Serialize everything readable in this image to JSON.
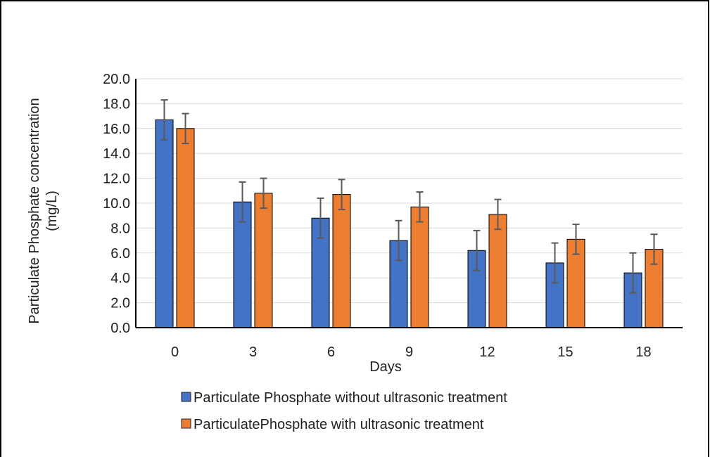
{
  "chart_data": {
    "type": "bar",
    "title": "",
    "xlabel": "Days",
    "ylabel_line1": "Particulate Phosphate concentration",
    "ylabel_line2": "(mg/L)",
    "categories": [
      "0",
      "3",
      "6",
      "9",
      "12",
      "15",
      "18"
    ],
    "ylim": [
      0,
      20
    ],
    "yticks": [
      "0.0",
      "2.0",
      "4.0",
      "6.0",
      "8.0",
      "10.0",
      "12.0",
      "14.0",
      "16.0",
      "18.0",
      "20.0"
    ],
    "grid": true,
    "legend_position": "bottom",
    "series": [
      {
        "name": "Particulate Phosphate without ultrasonic treatment",
        "color": "#4472C4",
        "values": [
          16.7,
          10.1,
          8.8,
          7.0,
          6.2,
          5.2,
          4.4
        ],
        "errors": [
          1.6,
          1.6,
          1.6,
          1.6,
          1.6,
          1.6,
          1.6
        ]
      },
      {
        "name": "ParticulatePhosphate with ultrasonic treatment",
        "color": "#ED7D31",
        "values": [
          16.0,
          10.8,
          10.7,
          9.7,
          9.1,
          7.1,
          6.3
        ],
        "errors": [
          1.2,
          1.2,
          1.2,
          1.2,
          1.2,
          1.2,
          1.2
        ]
      }
    ]
  }
}
